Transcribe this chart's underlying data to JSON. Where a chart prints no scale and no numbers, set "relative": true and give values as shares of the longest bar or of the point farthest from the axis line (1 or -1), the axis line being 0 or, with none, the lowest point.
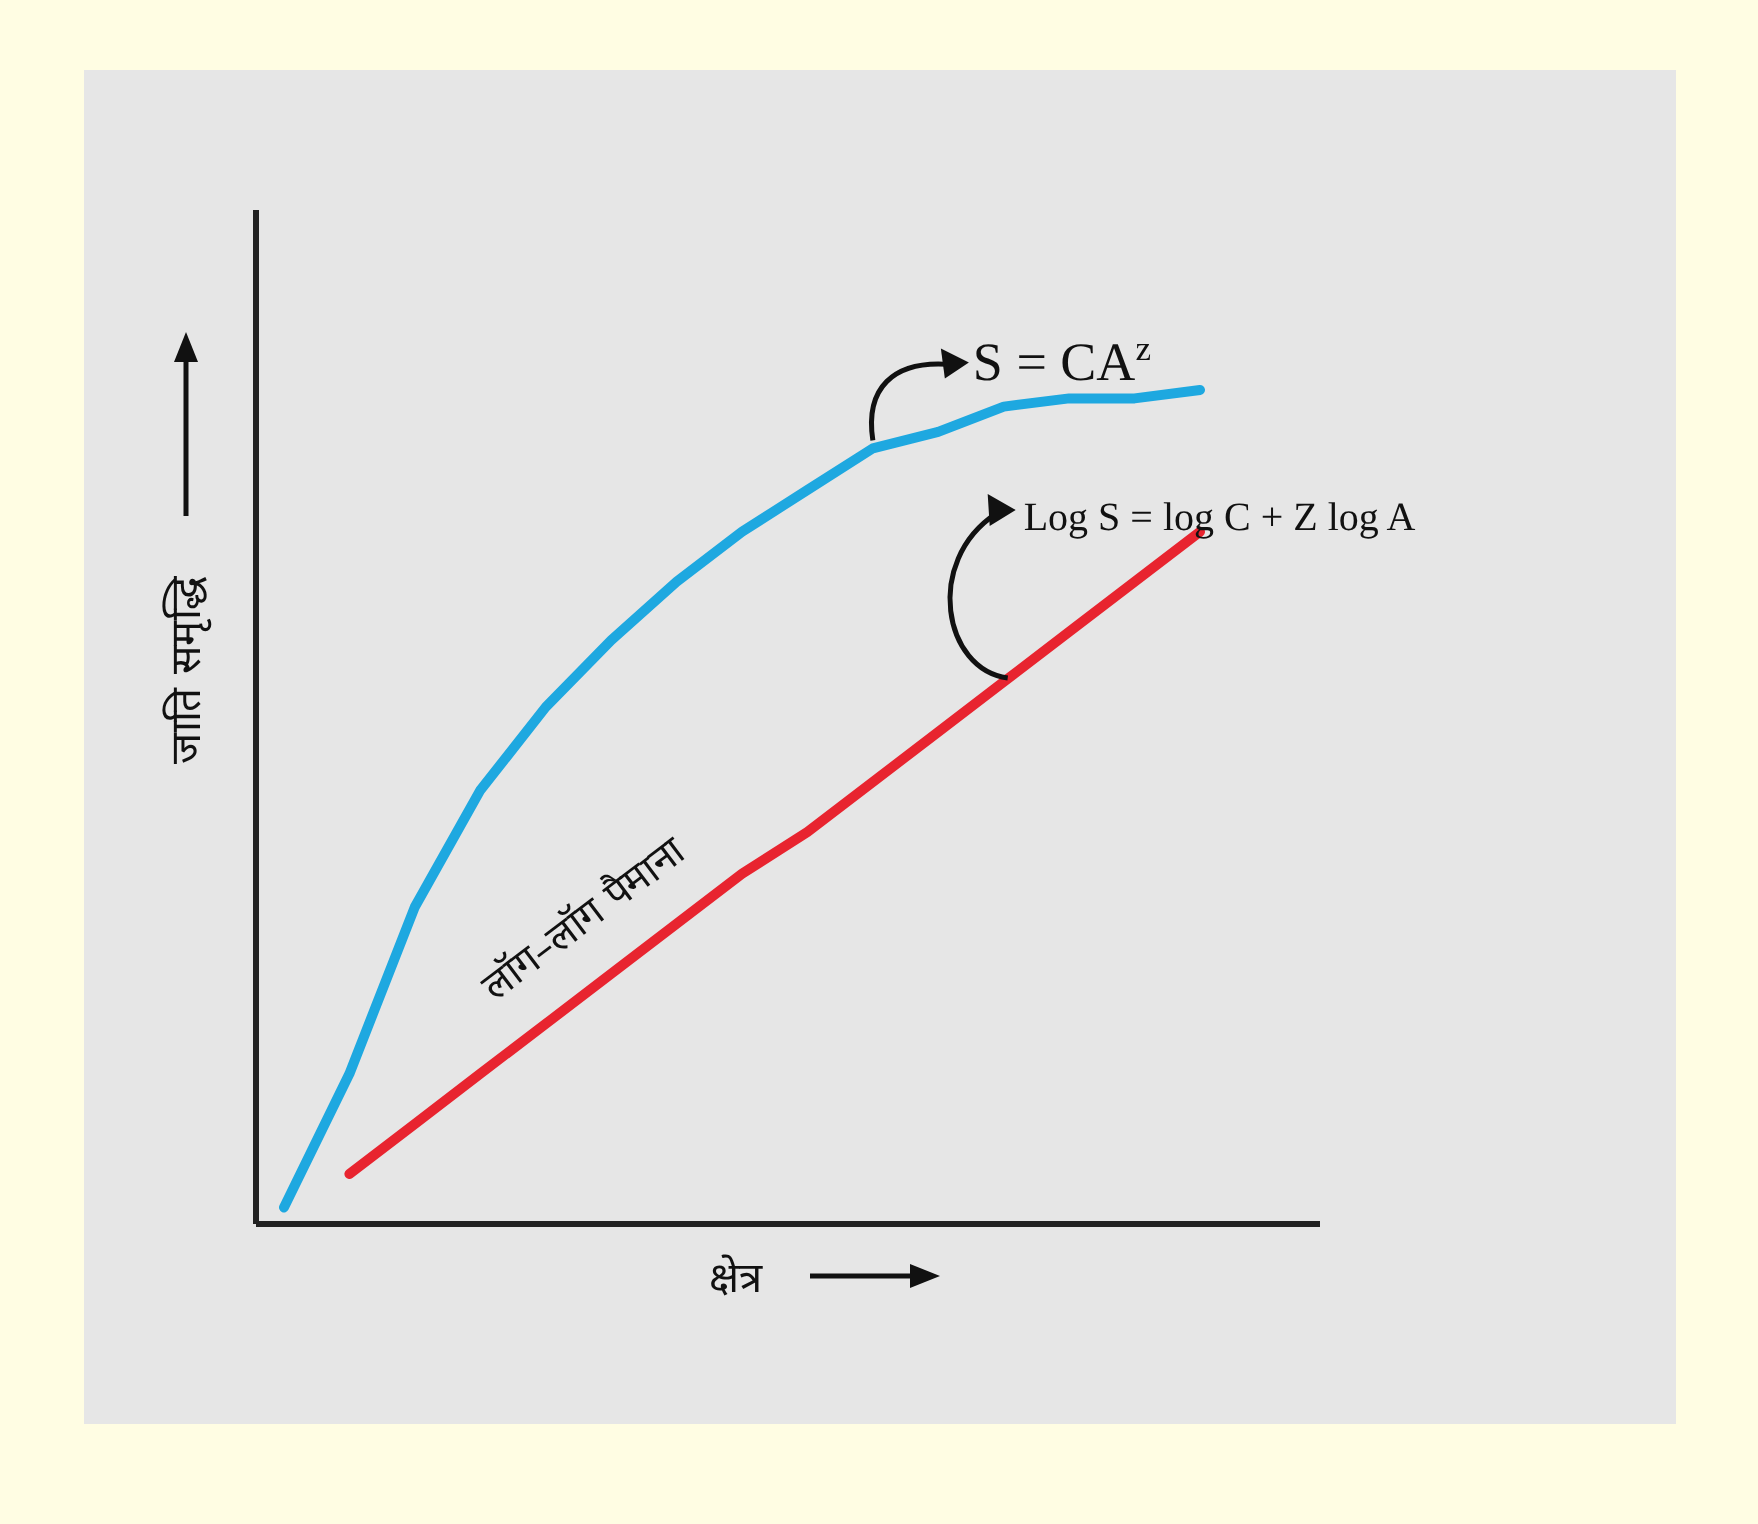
{
  "chart_data": {
    "type": "line",
    "relative": true,
    "xlabel": "क्षेत्र",
    "ylabel": "जाति समृद्धि",
    "categories": [
      null,
      null,
      null,
      null,
      null,
      null,
      null,
      null,
      null,
      null,
      null,
      null,
      null,
      null,
      null
    ],
    "series": [
      {
        "name": "S = CA$^{z}$",
        "color": "#1ea8e0",
        "values": [
          0.02,
          0.18,
          0.38,
          0.52,
          0.62,
          0.7,
          0.77,
          0.83,
          0.88,
          0.93,
          0.95,
          0.98,
          0.99,
          0.99,
          1.0
        ]
      },
      {
        "name": "Log S = log C + Z log A",
        "color": "#e8242f",
        "values": [
          null,
          0.06,
          0.12,
          0.18,
          0.24,
          0.3,
          0.36,
          0.42,
          0.47,
          0.53,
          0.59,
          0.65,
          0.71,
          0.77,
          0.83
        ]
      }
    ],
    "annotations": [
      "लॉग–लॉग पैमाना"
    ],
    "legend": false,
    "grid": false
  }
}
